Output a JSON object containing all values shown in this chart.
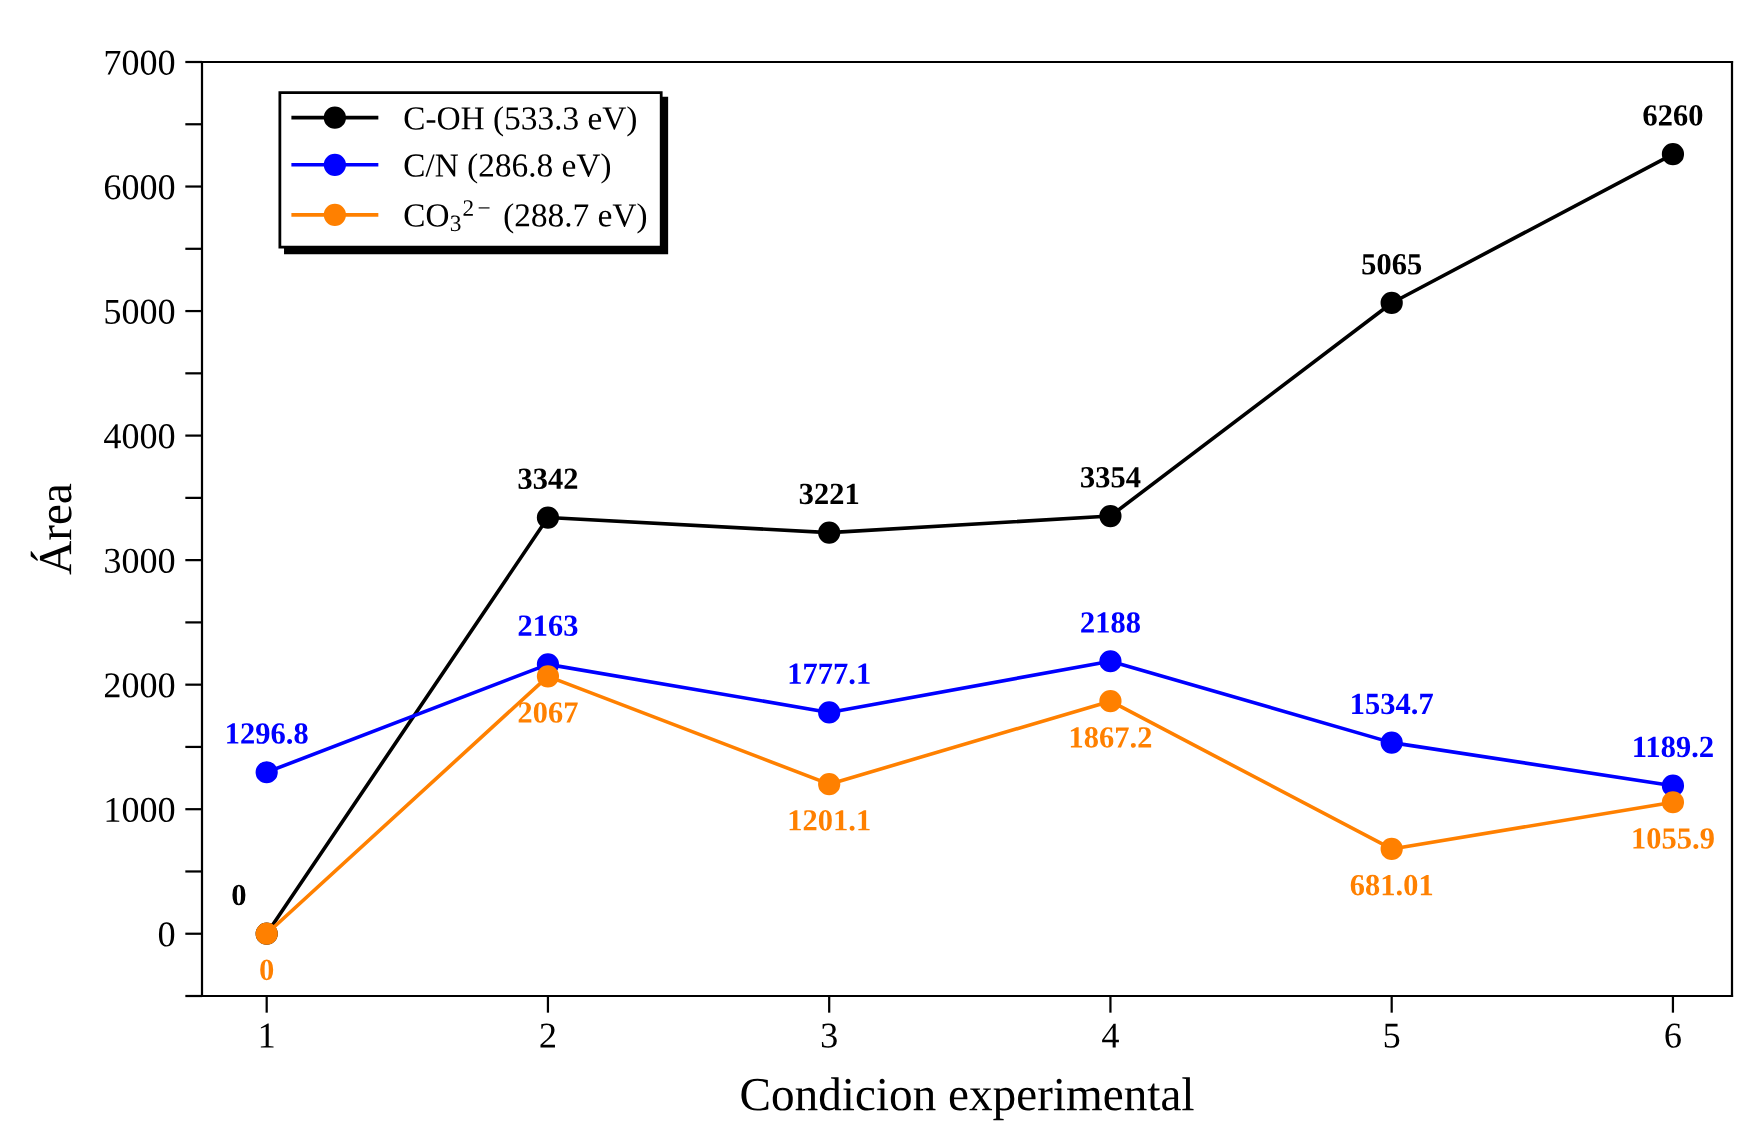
{
  "chart_data": {
    "type": "line",
    "xlabel": "Condicion experimental",
    "ylabel": "Área",
    "x": [
      1,
      2,
      3,
      4,
      5,
      6
    ],
    "series": [
      {
        "name": "C-OH (533.3 eV)",
        "color": "#000000",
        "values": [
          0,
          3342,
          3221,
          3354,
          5065,
          6260
        ]
      },
      {
        "name": "C/N (286.8 eV)",
        "color": "#0000ff",
        "values": [
          1296.8,
          2163,
          1777.1,
          2188,
          1534.7,
          1189.2
        ]
      },
      {
        "name": "CO$_{3}$$^{2−}$ (288.7 eV)",
        "color": "#ff8000",
        "values": [
          0,
          2067,
          1201.1,
          1867.2,
          681.01,
          1055.9
        ]
      }
    ],
    "xlim": [
      0.77,
      6.21
    ],
    "xticks": [
      1,
      2,
      3,
      4,
      5,
      6
    ],
    "ylim": [
      -500,
      7000
    ],
    "yticks": [
      {
        "value": -500,
        "label": null
      },
      0,
      {
        "value": 500,
        "label": null
      },
      1000,
      {
        "value": 1500,
        "label": null
      },
      2000,
      {
        "value": 2500,
        "label": null
      },
      3000,
      {
        "value": 3500,
        "label": null
      },
      4000,
      {
        "value": 4500,
        "label": null
      },
      5000,
      {
        "value": 5500,
        "label": null
      },
      6000,
      {
        "value": 6500,
        "label": null
      },
      7000
    ],
    "data_labels": true,
    "marker": "circle",
    "line_style": "solid",
    "legend": "top left",
    "grid": false
  }
}
